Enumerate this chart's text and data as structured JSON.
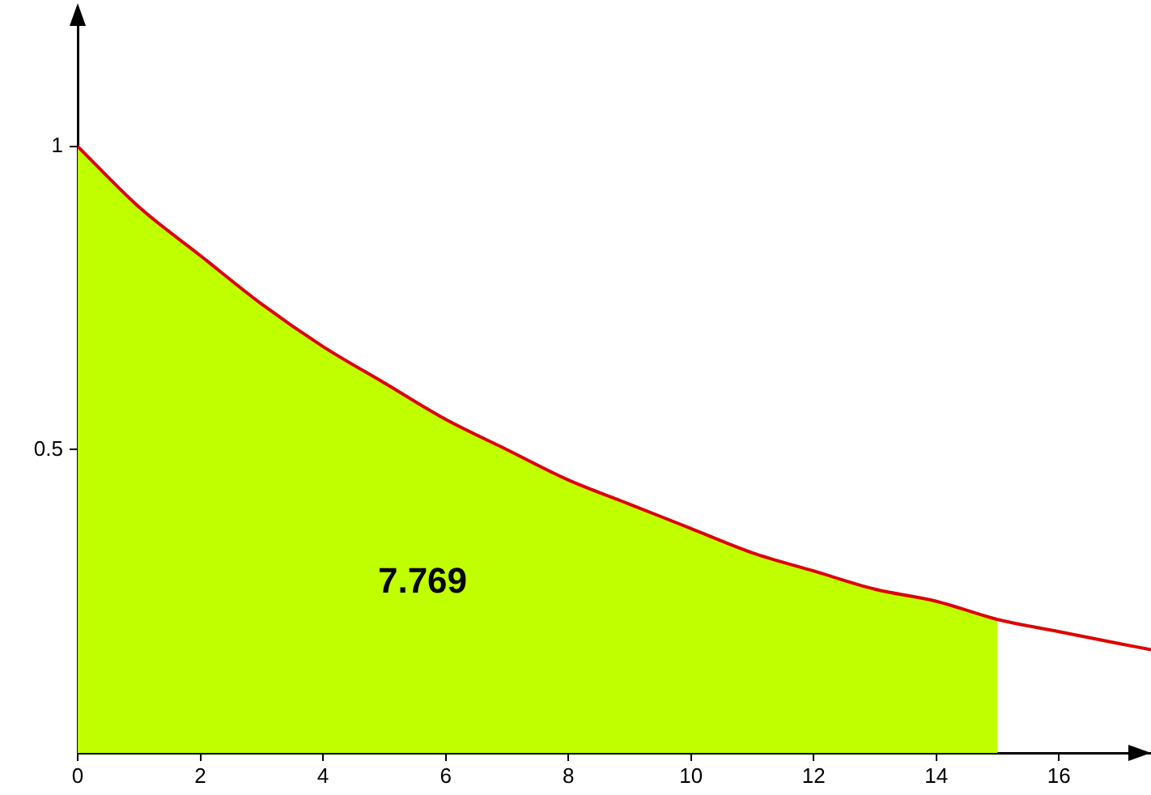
{
  "chart_data": {
    "type": "line",
    "series": [
      {
        "type": "area",
        "color": "#c0ff00",
        "x": [
          0,
          1,
          2,
          3,
          4,
          5,
          6,
          7,
          8,
          9,
          10,
          11,
          12,
          13,
          14,
          15
        ],
        "values": [
          1,
          0.9,
          0.82,
          0.74,
          0.67,
          0.61,
          0.55,
          0.5,
          0.45,
          0.41,
          0.37,
          0.33,
          0.3,
          0.27,
          0.25,
          0.22
        ]
      },
      {
        "color": "#dd0000",
        "x": [
          0,
          1,
          2,
          3,
          4,
          5,
          6,
          7,
          8,
          9,
          10,
          11,
          12,
          13,
          14,
          15,
          16,
          17,
          17.5
        ],
        "values": [
          1,
          0.9,
          0.82,
          0.74,
          0.67,
          0.61,
          0.55,
          0.5,
          0.45,
          0.41,
          0.37,
          0.33,
          0.3,
          0.27,
          0.25,
          0.22,
          0.2,
          0.18,
          0.17
        ]
      }
    ],
    "xlim": [
      0,
      17.5
    ],
    "xticks": [
      0,
      2,
      4,
      6,
      8,
      10,
      12,
      14,
      16
    ],
    "ylim": [
      0,
      1.21
    ],
    "yticks": [
      0.5,
      1
    ],
    "grid": false,
    "legend": false,
    "marker": "none",
    "line_style": "solid",
    "annotations": [
      "7.769"
    ]
  }
}
